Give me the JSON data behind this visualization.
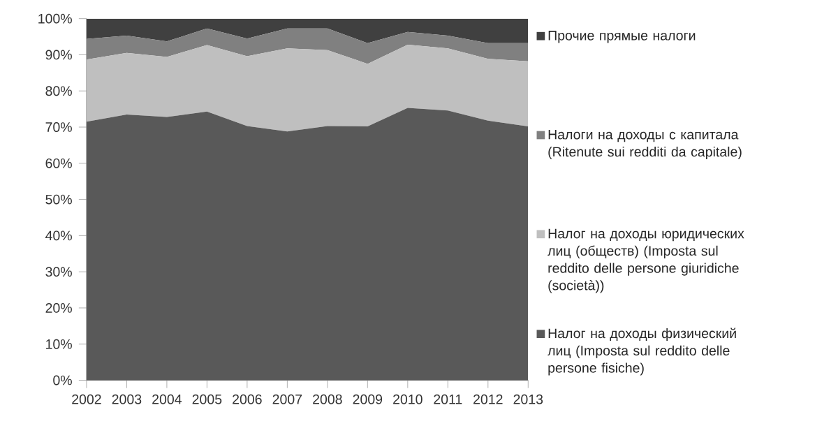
{
  "chart_data": {
    "type": "area",
    "stacked": true,
    "x": [
      2002,
      2003,
      2004,
      2005,
      2006,
      2007,
      2008,
      2009,
      2010,
      2011,
      2012,
      2013
    ],
    "xlim": [
      2002,
      2013
    ],
    "xticks": [
      2002,
      2003,
      2004,
      2005,
      2006,
      2007,
      2008,
      2009,
      2010,
      2011,
      2012,
      2013
    ],
    "ylim": [
      0,
      100
    ],
    "yticks": [
      {
        "value": 0,
        "label": "0%"
      },
      {
        "value": 10,
        "label": "10%"
      },
      {
        "value": 20,
        "label": "20%"
      },
      {
        "value": 30,
        "label": "30%"
      },
      {
        "value": 40,
        "label": "40%"
      },
      {
        "value": 50,
        "label": "50%"
      },
      {
        "value": 60,
        "label": "60%"
      },
      {
        "value": 70,
        "label": "70%"
      },
      {
        "value": 80,
        "label": "80%"
      },
      {
        "value": 90,
        "label": "90%"
      },
      {
        "value": 100,
        "label": "100%"
      }
    ],
    "legend": "right",
    "series": [
      {
        "name": "Налог на доходы физический лиц (Imposta sul reddito delle persone fisiche)",
        "color": "#595959",
        "values": [
          71.5,
          73.5,
          72.8,
          74.3,
          70.3,
          68.8,
          70.3,
          70.2,
          75.3,
          74.6,
          71.8,
          70.2
        ]
      },
      {
        "name": "Налог на доходы юридических лиц (обществ) (Imposta sul reddito delle persone giuridiche (società))",
        "color": "#bfbfbf",
        "values": [
          17.2,
          17.0,
          16.6,
          18.4,
          19.3,
          23.0,
          21.0,
          17.3,
          17.5,
          17.2,
          17.1,
          18.0
        ]
      },
      {
        "name": "Налоги на доходы с капитала (Ritenute sui redditi da capitale)",
        "color": "#808080",
        "values": [
          5.7,
          4.8,
          4.3,
          4.6,
          4.9,
          5.5,
          6.0,
          5.7,
          3.5,
          3.5,
          4.3,
          5.0
        ]
      },
      {
        "name": "Прочие прямые налоги",
        "color": "#404040",
        "values": [
          5.6,
          4.7,
          6.3,
          2.7,
          5.5,
          2.7,
          2.7,
          6.8,
          3.7,
          4.7,
          6.8,
          6.8
        ]
      }
    ]
  }
}
